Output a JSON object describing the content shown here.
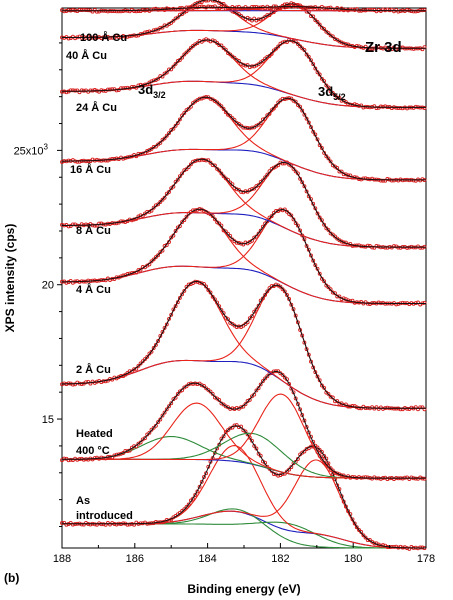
{
  "chart_data": {
    "type": "line",
    "panel_label": "(b)",
    "region_label": "Zr 3d",
    "peak_labels": {
      "left": {
        "base": "3d",
        "sub": "3/2"
      },
      "right": {
        "base": "3d",
        "sub": "5/2"
      }
    },
    "xlabel": "Binding energy (eV)",
    "ylabel": "XPS intensity (cps)",
    "x_reversed": true,
    "xlim": [
      188,
      178
    ],
    "ylim": [
      10.2,
      30.3
    ],
    "x_ticks": [
      "188",
      "186",
      "184",
      "182",
      "180",
      "178"
    ],
    "y_ticks": [
      {
        "value": 25,
        "label": "25x10",
        "sup": "3"
      },
      {
        "value": 20,
        "label": "20"
      },
      {
        "value": 15,
        "label": "15"
      }
    ],
    "colors": {
      "data": "#d81e1e",
      "envelope": "#111111",
      "component": "#e8241a",
      "background": "#1f1fbf",
      "extra_component": "#2e8b3a"
    },
    "series": [
      {
        "name": "As introduced",
        "offset": 10.2,
        "bg": 0.9,
        "peaks": [
          [
            183.25,
            2.45,
            0.68
          ],
          [
            181.0,
            2.75,
            0.62
          ]
        ],
        "bg_peaks": [
          [
            183.2,
            0.55,
            0.9
          ],
          [
            181.0,
            0.45,
            0.8
          ]
        ],
        "green_peaks": [
          [
            183.2,
            0.65,
            0.7
          ],
          [
            181.7,
            0.7,
            0.75
          ]
        ]
      },
      {
        "name": "Heated 400 °C",
        "offset": 12.8,
        "bg": 0.7,
        "peaks": [
          [
            184.3,
            2.1,
            0.68
          ],
          [
            181.95,
            2.9,
            0.62
          ]
        ],
        "bg_peaks": [],
        "green_peaks": [
          [
            185.0,
            0.85,
            0.8
          ],
          [
            182.7,
            1.15,
            0.8
          ]
        ]
      },
      {
        "name": "2 Å Cu",
        "offset": 15.4,
        "bg": 0.9,
        "peaks": [
          [
            184.3,
            2.95,
            0.68
          ],
          [
            182.0,
            3.45,
            0.62
          ]
        ],
        "bg_peaks": [
          [
            184.9,
            0.8,
            1.0
          ],
          [
            182.6,
            0.9,
            1.0
          ]
        ],
        "green_peaks": []
      },
      {
        "name": "4 Å Cu",
        "offset": 19.3,
        "bg": 0.8,
        "peaks": [
          [
            184.2,
            2.15,
            0.68
          ],
          [
            181.85,
            2.75,
            0.62
          ]
        ],
        "bg_peaks": [
          [
            184.9,
            0.55,
            1.0
          ],
          [
            182.5,
            0.6,
            1.0
          ]
        ],
        "green_peaks": []
      },
      {
        "name": "8 Å Cu",
        "offset": 21.4,
        "bg": 0.8,
        "peaks": [
          [
            184.15,
            2.0,
            0.68
          ],
          [
            181.8,
            2.45,
            0.62
          ]
        ],
        "bg_peaks": [
          [
            184.8,
            0.45,
            1.0
          ],
          [
            182.4,
            0.55,
            1.0
          ]
        ],
        "green_peaks": []
      },
      {
        "name": "16 Å Cu",
        "offset": 23.9,
        "bg": 0.7,
        "peaks": [
          [
            184.05,
            1.95,
            0.68
          ],
          [
            181.7,
            2.4,
            0.62
          ]
        ],
        "bg_peaks": [
          [
            184.7,
            0.4,
            1.0
          ],
          [
            182.3,
            0.55,
            1.0
          ]
        ],
        "green_peaks": []
      },
      {
        "name": "24 Å Cu",
        "offset": 26.6,
        "bg": 0.6,
        "peaks": [
          [
            184.0,
            1.55,
            0.68
          ],
          [
            181.65,
            2.0,
            0.62
          ]
        ],
        "bg_peaks": [
          [
            184.6,
            0.35,
            1.0
          ],
          [
            182.2,
            0.4,
            1.0
          ]
        ],
        "green_peaks": []
      },
      {
        "name": "40 Å Cu",
        "offset": 28.8,
        "bg": 0.4,
        "peaks": [
          [
            183.95,
            1.15,
            0.68
          ],
          [
            181.6,
            1.3,
            0.62
          ]
        ],
        "bg_peaks": [
          [
            184.5,
            0.25,
            1.0
          ],
          [
            182.1,
            0.3,
            1.0
          ]
        ],
        "green_peaks": []
      },
      {
        "name": "100 Å Cu",
        "offset": 30.2,
        "bg": 0.0,
        "peaks": [
          [
            184.0,
            0.12,
            0.9
          ],
          [
            181.6,
            0.15,
            0.9
          ]
        ],
        "bg_peaks": [],
        "green_peaks": []
      }
    ]
  }
}
